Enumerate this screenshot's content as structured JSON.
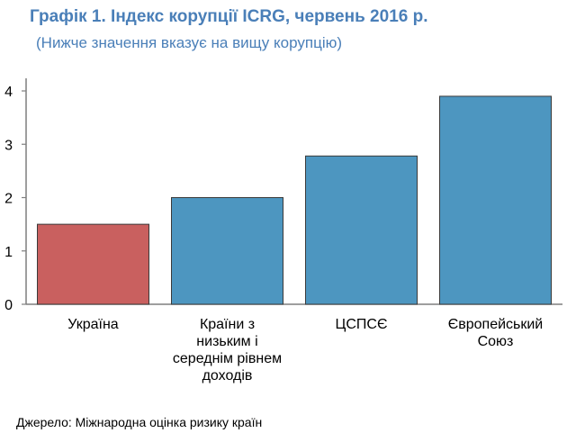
{
  "chart_data": {
    "type": "bar",
    "title": "Графік 1. Індекс корупції ICRG, червень 2016 р.",
    "subtitle": "(Нижче значення вказує на вищу корупцію)",
    "categories": [
      "Україна",
      "Країни з низьким і середнім рівнем доходів",
      "ЦСПСЄ",
      "Європейський Союз"
    ],
    "category_lines": [
      [
        "Україна"
      ],
      [
        "Країни з",
        "низьким і",
        "середнім рівнем",
        "доходів"
      ],
      [
        "ЦСПСЄ"
      ],
      [
        "Європейський",
        "Союз"
      ]
    ],
    "values": [
      1.5,
      2.0,
      2.78,
      3.9
    ],
    "bar_colors": [
      "#c9605f",
      "#4d96c0",
      "#4d96c0",
      "#4d96c0"
    ],
    "ylim": [
      0,
      4
    ],
    "yticks": [
      "0",
      "1",
      "2",
      "3",
      "4"
    ],
    "xlabel": "",
    "ylabel": "",
    "grid": false,
    "source": "Джерело: Міжнародна оцінка ризику країн"
  }
}
